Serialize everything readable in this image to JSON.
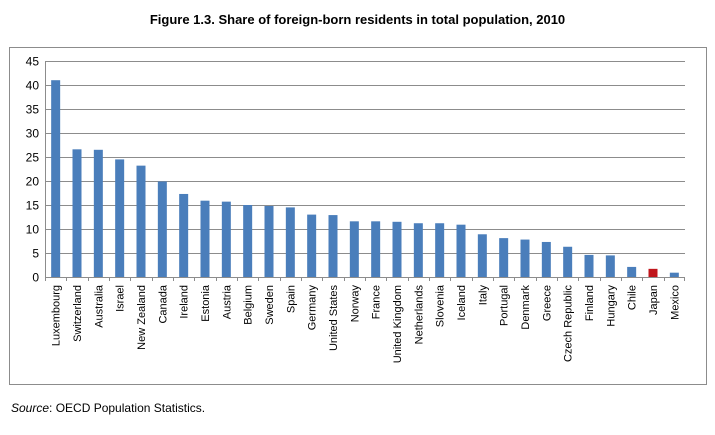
{
  "chart_data": {
    "type": "bar",
    "title": "Figure 1.3. Share of foreign-born residents in total population, 2010",
    "xlabel": "",
    "ylabel": "",
    "ylim": [
      0,
      45
    ],
    "yticks": [
      0,
      5,
      10,
      15,
      20,
      25,
      30,
      35,
      40,
      45
    ],
    "grid": true,
    "categories": [
      "Luxembourg",
      "Switzerland",
      "Australia",
      "Israel",
      "New Zealand",
      "Canada",
      "Ireland",
      "Estonia",
      "Austria",
      "Belgium",
      "Sweden",
      "Spain",
      "Germany",
      "United States",
      "Norway",
      "France",
      "United Kingdom",
      "Netherlands",
      "Slovenia",
      "Iceland",
      "Italy",
      "Portugal",
      "Denmark",
      "Greece",
      "Czech Republic",
      "Finland",
      "Hungary",
      "Chile",
      "Japan",
      "Mexico"
    ],
    "values": [
      41.0,
      26.6,
      26.5,
      24.5,
      23.2,
      19.9,
      17.3,
      15.9,
      15.7,
      15.0,
      14.8,
      14.5,
      13.0,
      12.9,
      11.6,
      11.6,
      11.5,
      11.2,
      11.2,
      10.9,
      8.9,
      8.1,
      7.8,
      7.3,
      6.3,
      4.6,
      4.5,
      2.1,
      1.7,
      0.9
    ],
    "colors": {
      "default": "#4a7ebb",
      "highlight": "#c0161c",
      "grid": "#8c8c8c"
    },
    "highlight": "Japan"
  },
  "source": {
    "label": "Source",
    "text": ": OECD Population Statistics."
  }
}
